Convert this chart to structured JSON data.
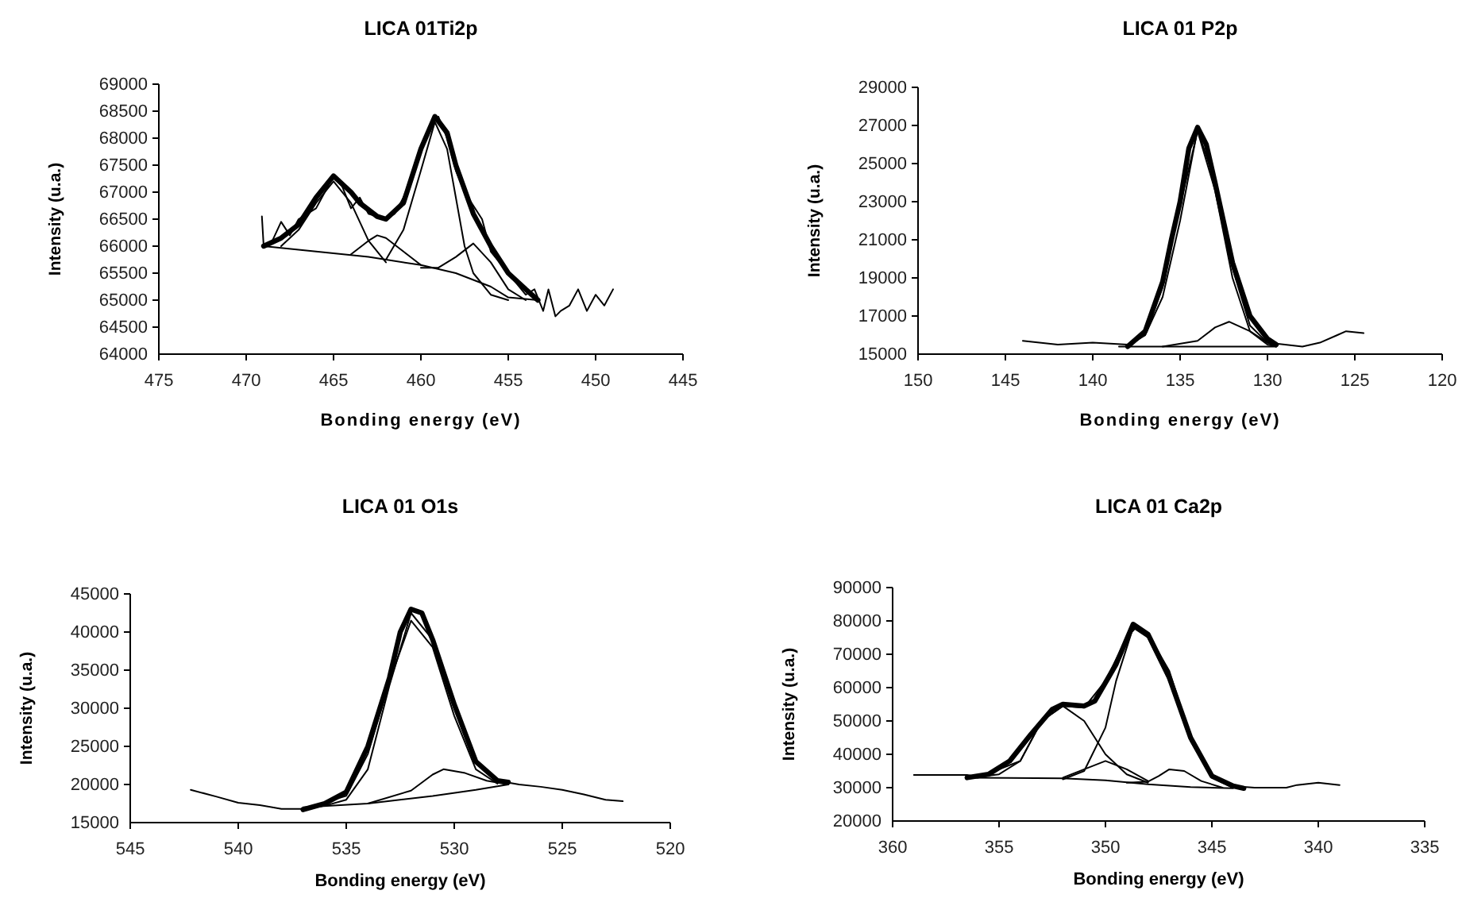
{
  "chart_data": [
    {
      "type": "line",
      "title": "LICA 01Ti2p",
      "xlabel": "Bonding energy (eV)",
      "ylabel": "Intensity (u.a.)",
      "xlim": [
        475,
        445
      ],
      "xticks": [
        475,
        470,
        465,
        460,
        455,
        450,
        445
      ],
      "ylim": [
        64000,
        69000
      ],
      "yticks": [
        64000,
        64500,
        65000,
        65500,
        66000,
        66500,
        67000,
        67500,
        68000,
        68500,
        69000
      ],
      "grid": false,
      "marker": "none",
      "line_style": "solid",
      "series": [
        {
          "color": "#000000",
          "x": [
            469,
            468,
            467,
            466,
            465,
            464,
            463.5,
            462.5,
            462,
            461,
            460,
            459.2,
            458.5,
            458,
            457,
            456,
            455,
            454,
            453.3
          ],
          "values": [
            66000,
            66150,
            66400,
            66900,
            67300,
            67000,
            66800,
            66550,
            66500,
            66800,
            67800,
            68400,
            68100,
            67500,
            66600,
            66000,
            65500,
            65200,
            65000
          ]
        },
        {
          "color": "#000000",
          "x": [
            469.1,
            469,
            468.5,
            468,
            467.5,
            467,
            466,
            465.5,
            465,
            464.5,
            464,
            463.5,
            463,
            462,
            461.5,
            461,
            460.5,
            460,
            459.5,
            459,
            458.5,
            458,
            457.5,
            456.5,
            456,
            455,
            454.5,
            454,
            453.5,
            453,
            452.7,
            452.3,
            452,
            451.5,
            451,
            450.5,
            450,
            449.5,
            449
          ],
          "values": [
            66550,
            66000,
            66100,
            66450,
            66200,
            66500,
            66700,
            67000,
            67300,
            67100,
            66700,
            66900,
            66600,
            66500,
            66600,
            66900,
            67300,
            67800,
            68200,
            68400,
            68000,
            67400,
            67000,
            66500,
            65900,
            65500,
            65300,
            65100,
            65200,
            64800,
            65200,
            64700,
            64800,
            64900,
            65200,
            64800,
            65100,
            64900,
            65200
          ]
        },
        {
          "color": "#000000",
          "x": [
            468,
            467,
            466,
            465,
            464,
            463,
            462
          ],
          "values": [
            66000,
            66300,
            66800,
            67200,
            66800,
            66100,
            65700
          ]
        },
        {
          "color": "#000000",
          "x": [
            464,
            463,
            462.5,
            462,
            461,
            460
          ],
          "values": [
            65850,
            66100,
            66200,
            66150,
            65900,
            65650
          ]
        },
        {
          "color": "#000000",
          "x": [
            462,
            461,
            460,
            459.2,
            458.5,
            458,
            457.5,
            457,
            456,
            455
          ],
          "values": [
            65750,
            66300,
            67400,
            68300,
            67800,
            66900,
            66000,
            65500,
            65100,
            65000
          ]
        },
        {
          "color": "#000000",
          "x": [
            460,
            459,
            458,
            457,
            456,
            455,
            454
          ],
          "values": [
            65600,
            65600,
            65800,
            66050,
            65700,
            65200,
            65000
          ]
        },
        {
          "color": "#000000",
          "x": [
            469,
            466,
            463,
            460,
            458,
            456,
            455,
            453.3
          ],
          "values": [
            66000,
            65900,
            65800,
            65650,
            65500,
            65250,
            65050,
            65000
          ]
        }
      ]
    },
    {
      "type": "line",
      "title": "LICA 01 P2p",
      "xlabel": "Bonding energy (eV)",
      "ylabel": "Intensity (u.a.)",
      "xlim": [
        150,
        120
      ],
      "xticks": [
        150,
        145,
        140,
        135,
        130,
        125,
        120
      ],
      "ylim": [
        15000,
        29000
      ],
      "yticks": [
        15000,
        17000,
        19000,
        21000,
        23000,
        25000,
        27000,
        29000
      ],
      "grid": false,
      "marker": "none",
      "line_style": "solid",
      "series": [
        {
          "color": "#000000",
          "x": [
            138,
            137,
            136,
            135.5,
            135,
            134.5,
            134,
            133.5,
            133,
            132,
            131,
            130,
            129.5
          ],
          "values": [
            15400,
            16200,
            18800,
            21000,
            23000,
            25800,
            26900,
            26000,
            24000,
            19800,
            17000,
            15800,
            15500
          ]
        },
        {
          "color": "#000000",
          "x": [
            144,
            142,
            140,
            138,
            137,
            136,
            135,
            134,
            133,
            132,
            131,
            130,
            129,
            128,
            127,
            126,
            125.5,
            124.5
          ],
          "values": [
            15700,
            15500,
            15600,
            15500,
            16000,
            18000,
            22000,
            26800,
            24000,
            19500,
            16500,
            15600,
            15500,
            15400,
            15600,
            16000,
            16200,
            16100
          ]
        },
        {
          "color": "#000000",
          "x": [
            138,
            137,
            136,
            135,
            134,
            133,
            132,
            131,
            130,
            129.5
          ],
          "values": [
            15400,
            16000,
            18500,
            22800,
            26700,
            23600,
            19000,
            16200,
            15500,
            15400
          ]
        },
        {
          "color": "#000000",
          "x": [
            136,
            134,
            133,
            132.2,
            131,
            130,
            129.5
          ],
          "values": [
            15400,
            15700,
            16400,
            16700,
            16200,
            15600,
            15400
          ]
        },
        {
          "color": "#000000",
          "x": [
            138.5,
            129.5
          ],
          "values": [
            15400,
            15400
          ]
        }
      ]
    },
    {
      "type": "line",
      "title": "LICA 01 O1s",
      "xlabel": "Bonding energy (eV)",
      "ylabel": "Intensity (u.a.)",
      "xlim": [
        545,
        520
      ],
      "xticks": [
        545,
        540,
        535,
        530,
        525,
        520
      ],
      "ylim": [
        15000,
        45000
      ],
      "yticks": [
        15000,
        20000,
        25000,
        30000,
        35000,
        40000,
        45000
      ],
      "grid": false,
      "marker": "none",
      "line_style": "solid",
      "series": [
        {
          "color": "#000000",
          "x": [
            537,
            536,
            535,
            534,
            533,
            532.5,
            532,
            531.5,
            531,
            530,
            529,
            528,
            527.5
          ],
          "values": [
            16700,
            17500,
            19000,
            25000,
            34000,
            40000,
            43000,
            42500,
            39000,
            30500,
            23000,
            20500,
            20300
          ]
        },
        {
          "color": "#000000",
          "x": [
            542.2,
            541,
            540,
            539,
            538,
            537,
            536,
            535,
            534,
            533,
            532,
            531,
            530,
            529,
            528,
            527,
            526,
            525,
            524,
            523,
            522.2
          ],
          "values": [
            19300,
            18400,
            17600,
            17300,
            16800,
            16800,
            17200,
            18000,
            22000,
            33000,
            42500,
            39000,
            30000,
            23000,
            20500,
            20000,
            19700,
            19300,
            18700,
            18000,
            17800
          ]
        },
        {
          "color": "#000000",
          "x": [
            537,
            535,
            534,
            533,
            532,
            531,
            530,
            529,
            528
          ],
          "values": [
            16800,
            18500,
            24000,
            33500,
            41500,
            38000,
            29000,
            22000,
            20100
          ]
        },
        {
          "color": "#000000",
          "x": [
            534,
            532,
            531,
            530.5,
            529.5,
            528.5,
            527.5
          ],
          "values": [
            17500,
            19200,
            21300,
            22000,
            21500,
            20500,
            20000
          ]
        },
        {
          "color": "#000000",
          "x": [
            537,
            534,
            531,
            529,
            527.5
          ],
          "values": [
            17000,
            17500,
            18500,
            19300,
            20000
          ]
        }
      ]
    },
    {
      "type": "line",
      "title": "LICA 01 Ca2p",
      "xlabel": "Bonding energy (eV)",
      "ylabel": "Intensity (u.a.)",
      "xlim": [
        360,
        335
      ],
      "xticks": [
        360,
        355,
        350,
        345,
        340,
        335
      ],
      "ylim": [
        20000,
        90000
      ],
      "yticks": [
        20000,
        30000,
        40000,
        50000,
        60000,
        70000,
        80000,
        90000
      ],
      "grid": false,
      "marker": "none",
      "line_style": "solid",
      "series": [
        {
          "color": "#000000",
          "x": [
            356.5,
            355.5,
            354.5,
            353.5,
            352.5,
            352,
            351,
            350.5,
            349.5,
            348.7,
            348,
            347,
            346,
            345,
            344,
            343.5
          ],
          "values": [
            33000,
            34000,
            38000,
            46000,
            53500,
            55000,
            54500,
            56000,
            67000,
            79000,
            76000,
            63000,
            45000,
            33500,
            30500,
            29800
          ]
        },
        {
          "color": "#000000",
          "x": [
            359,
            356.5,
            356,
            355,
            354,
            353,
            352,
            351,
            350,
            349,
            348.5,
            348,
            347,
            346,
            345,
            344,
            343,
            341.5,
            341,
            340,
            339
          ],
          "values": [
            33800,
            33800,
            33200,
            34000,
            38000,
            50000,
            54500,
            54000,
            62000,
            75000,
            78500,
            76000,
            65000,
            45000,
            33000,
            30500,
            30000,
            30000,
            30800,
            31500,
            30800
          ]
        },
        {
          "color": "#000000",
          "x": [
            356,
            354,
            353,
            352,
            351,
            350,
            349,
            348
          ],
          "values": [
            33000,
            38000,
            50000,
            54500,
            50000,
            40000,
            34000,
            31500
          ]
        },
        {
          "color": "#000000",
          "x": [
            352,
            351,
            350,
            349.5,
            348.7,
            348,
            347,
            346,
            345,
            344
          ],
          "values": [
            32500,
            35000,
            48000,
            62000,
            78000,
            75000,
            62000,
            44000,
            33000,
            30000
          ]
        },
        {
          "color": "#000000",
          "x": [
            352,
            351,
            350,
            349,
            348
          ],
          "values": [
            33000,
            35500,
            38000,
            35500,
            32000
          ]
        },
        {
          "color": "#000000",
          "x": [
            349,
            348,
            347.5,
            347,
            346.3,
            345.5,
            344.5
          ],
          "values": [
            31500,
            31800,
            33500,
            35500,
            35000,
            32000,
            30000
          ]
        },
        {
          "color": "#000000",
          "x": [
            356.5,
            352,
            350,
            348,
            346,
            344
          ],
          "values": [
            33000,
            32800,
            32200,
            31000,
            30200,
            29800
          ]
        }
      ]
    }
  ]
}
